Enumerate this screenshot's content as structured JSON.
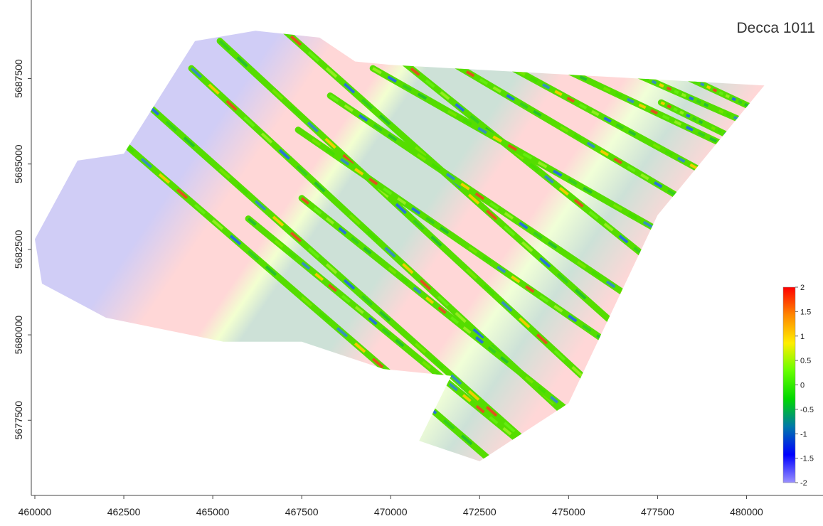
{
  "title": "Decca 1011",
  "x_axis": {
    "ticks": [
      460000,
      462500,
      465000,
      467500,
      470000,
      472500,
      475000,
      477500,
      480000
    ],
    "range": [
      459900,
      482150
    ]
  },
  "y_axis": {
    "ticks": [
      5677500,
      5680000,
      5682500,
      5685000,
      5687500
    ],
    "range": [
      5675300,
      5689800
    ]
  },
  "colorbar": {
    "min": -2,
    "max": 2,
    "labels": [
      "2",
      "1.5",
      "1",
      "0.5",
      "0",
      "-0.5",
      "-1",
      "-1.5",
      "-2"
    ],
    "colors": [
      "#ff0000",
      "#ff8800",
      "#ffee00",
      "#66ff00",
      "#00d800",
      "#0077aa",
      "#0000ff",
      "#9a90ff"
    ]
  },
  "survey_area": {
    "outline": [
      [
        460000,
        5682800
      ],
      [
        461200,
        5685100
      ],
      [
        462500,
        5685300
      ],
      [
        464500,
        5688600
      ],
      [
        466200,
        5688900
      ],
      [
        468000,
        5688700
      ],
      [
        469000,
        5688000
      ],
      [
        470000,
        5687900
      ],
      [
        480500,
        5687300
      ],
      [
        477500,
        5683500
      ],
      [
        475000,
        5678000
      ],
      [
        472500,
        5676300
      ],
      [
        470800,
        5676900
      ],
      [
        471700,
        5678800
      ],
      [
        469800,
        5679000
      ],
      [
        467500,
        5679800
      ],
      [
        465300,
        5679800
      ],
      [
        462000,
        5680500
      ],
      [
        460200,
        5681500
      ]
    ],
    "bands": [
      {
        "name": "west",
        "color": "#c8c4f4"
      },
      {
        "name": "ridge",
        "color": "#ffd0d0"
      },
      {
        "name": "trough",
        "color": "#c4dcd0"
      }
    ]
  },
  "track_lines": [
    {
      "from": [
        462500,
        5685600
      ],
      "to": [
        473500,
        5675700
      ]
    },
    {
      "from": [
        463200,
        5686700
      ],
      "to": [
        474200,
        5676500
      ]
    },
    {
      "from": [
        464400,
        5687800
      ],
      "to": [
        475300,
        5677300
      ]
    },
    {
      "from": [
        465200,
        5688600
      ],
      "to": [
        476100,
        5678100
      ]
    },
    {
      "from": [
        466700,
        5689200
      ],
      "to": [
        477700,
        5679000
      ]
    },
    {
      "from": [
        466000,
        5683400
      ],
      "to": [
        474300,
        5676300
      ]
    },
    {
      "from": [
        467500,
        5684000
      ],
      "to": [
        475200,
        5677600
      ]
    },
    {
      "from": [
        467400,
        5686000
      ],
      "to": [
        476200,
        5679700
      ]
    },
    {
      "from": [
        468300,
        5687000
      ],
      "to": [
        477300,
        5680700
      ]
    },
    {
      "from": [
        468900,
        5689200
      ],
      "to": [
        478100,
        5681500
      ]
    },
    {
      "from": [
        469500,
        5687800
      ],
      "to": [
        478800,
        5682300
      ]
    },
    {
      "from": [
        471000,
        5688400
      ],
      "to": [
        479300,
        5683300
      ]
    },
    {
      "from": [
        472200,
        5688500
      ],
      "to": [
        479800,
        5684200
      ]
    },
    {
      "from": [
        473000,
        5688700
      ],
      "to": [
        480300,
        5685100
      ]
    },
    {
      "from": [
        476300,
        5687900
      ],
      "to": [
        480900,
        5685800
      ]
    },
    {
      "from": [
        477600,
        5686800
      ],
      "to": [
        481500,
        5684800
      ]
    },
    {
      "from": [
        478000,
        5687700
      ],
      "to": [
        481900,
        5685800
      ]
    },
    {
      "from": [
        478400,
        5688500
      ],
      "to": [
        482050,
        5686600
      ]
    },
    {
      "from": [
        479300,
        5688800
      ],
      "to": [
        482150,
        5686900
      ]
    }
  ]
}
